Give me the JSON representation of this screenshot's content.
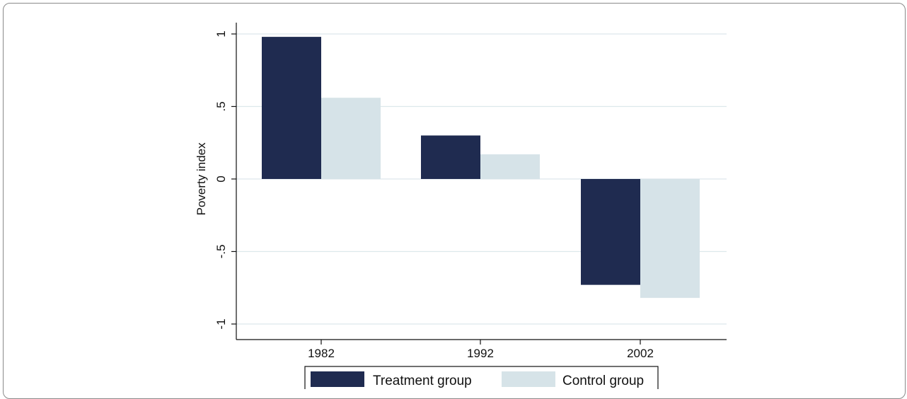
{
  "chart_data": {
    "type": "bar",
    "categories": [
      "1982",
      "1992",
      "2002"
    ],
    "series": [
      {
        "name": "Treatment group",
        "values": [
          0.98,
          0.3,
          -0.73
        ],
        "color": "#1f2b50"
      },
      {
        "name": "Control group",
        "values": [
          0.56,
          0.17,
          -0.82
        ],
        "color": "#d6e3e8"
      }
    ],
    "title": "",
    "xlabel": "",
    "ylabel": "Poverty index",
    "ylim": [
      -1.1,
      1.08
    ],
    "yticks": [
      {
        "value": 1,
        "label": "1"
      },
      {
        "value": 0.5,
        "label": ".5"
      },
      {
        "value": 0,
        "label": "0"
      },
      {
        "value": -0.5,
        "label": "-.5"
      },
      {
        "value": -1,
        "label": "-1"
      }
    ],
    "grid": true,
    "gridline_color": "#dde8ec",
    "legend_position": "bottom"
  }
}
